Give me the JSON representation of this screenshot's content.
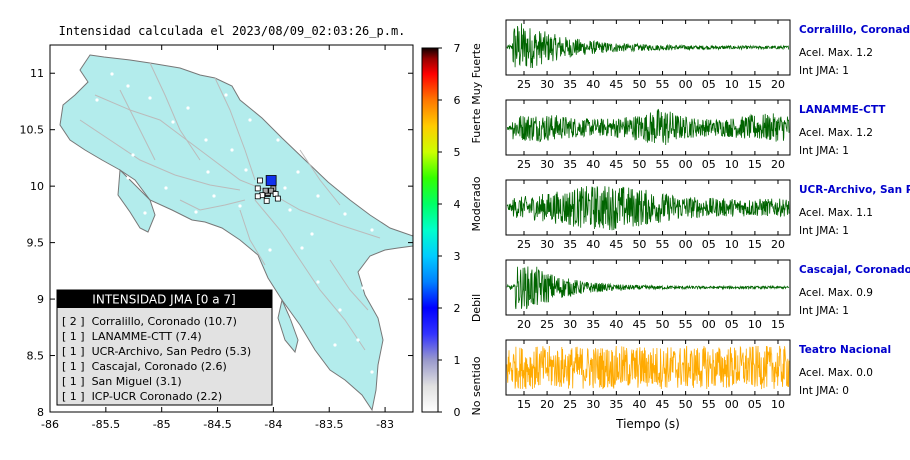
{
  "title": "Intensidad calculada el 2023/08/09_02:03:26_p.m.",
  "map": {
    "x_ticks": [
      "-86",
      "-85.5",
      "-85",
      "-84.5",
      "-84",
      "-83.5",
      "-83"
    ],
    "x_tick_values": [
      -86,
      -85.5,
      -85,
      -84.5,
      -84,
      -83.5,
      -83
    ],
    "y_ticks": [
      "11",
      "10.5",
      "10",
      "9.5",
      "9",
      "8.5",
      "8"
    ],
    "y_tick_values": [
      11,
      10.5,
      10,
      9.5,
      9,
      8.5,
      8
    ],
    "xlim": [
      -86,
      -82.75
    ],
    "ylim": [
      8,
      11.25
    ],
    "colors": {
      "land": "#b3ecec",
      "border": "#777777",
      "road": "#bbbbbb"
    }
  },
  "colorbar": {
    "ticks": [
      "0",
      "1",
      "2",
      "3",
      "4",
      "5",
      "6",
      "7"
    ],
    "tick_values": [
      0,
      1,
      2,
      3,
      4,
      5,
      6,
      7
    ],
    "labels": [
      {
        "text": "No sentido",
        "center": 0.5
      },
      {
        "text": "Debil",
        "center": 2.0
      },
      {
        "text": "Moderado",
        "center": 4.0
      },
      {
        "text": "Fuerte",
        "center": 5.5
      },
      {
        "text": "Muy Fuerte",
        "center": 6.5
      }
    ]
  },
  "legend": {
    "header": "INTENSIDAD JMA [0 a 7]",
    "items": [
      "[ 2 ]  Corralillo, Coronado (10.7)",
      "[ 1 ]  LANAMME-CTT (7.4)",
      "[ 1 ]  UCR-Archivo, San Pedro (5.3)",
      "[ 1 ]  Cascajal, Coronado (2.6)",
      "[ 1 ]  San Miguel (3.1)",
      "[ 1 ]  ICP-UCR Coronado (2.2)"
    ]
  },
  "waveforms": [
    {
      "station": "Corralillo, Coronado",
      "acel": "Acel. Max. 1.2",
      "int": "Int JMA: 1",
      "color": "#006400",
      "ticks": [
        "25",
        "30",
        "35",
        "40",
        "45",
        "50",
        "55",
        "00",
        "05",
        "10",
        "15",
        "20"
      ],
      "first_tick": 25
    },
    {
      "station": "LANAMME-CTT",
      "acel": "Acel. Max. 1.2",
      "int": "Int JMA: 1",
      "color": "#006400",
      "ticks": [
        "25",
        "30",
        "35",
        "40",
        "45",
        "50",
        "55",
        "00",
        "05",
        "10",
        "15",
        "20"
      ],
      "first_tick": 25
    },
    {
      "station": "UCR-Archivo, San Pedro",
      "acel": "Acel. Max. 1.1",
      "int": "Int JMA: 1",
      "color": "#006400",
      "ticks": [
        "25",
        "30",
        "35",
        "40",
        "45",
        "50",
        "55",
        "00",
        "05",
        "10",
        "15",
        "20"
      ],
      "first_tick": 25
    },
    {
      "station": "Cascajal, Coronado",
      "acel": "Acel. Max. 0.9",
      "int": "Int JMA: 1",
      "color": "#006400",
      "ticks": [
        "20",
        "25",
        "30",
        "35",
        "40",
        "45",
        "50",
        "55",
        "00",
        "05",
        "10",
        "15"
      ],
      "first_tick": 20
    },
    {
      "station": "Teatro Nacional",
      "acel": "Acel. Max. 0.0",
      "int": "Int JMA: 0",
      "color": "#ffaa00",
      "ticks": [
        "15",
        "20",
        "25",
        "30",
        "35",
        "40",
        "45",
        "50",
        "55",
        "00",
        "05",
        "10"
      ],
      "first_tick": 15
    }
  ],
  "xlabel": "Tiempo (s)",
  "chart_data": {
    "type": "scatter",
    "title": "Intensidad calculada el 2023/08/09_02:03:26_p.m.",
    "xlim": [
      -86,
      -82.75
    ],
    "ylim": [
      8,
      11.25
    ],
    "stations": [
      {
        "lon": -84.02,
        "lat": 10.05,
        "intensity": 2
      },
      {
        "lon": -84.05,
        "lat": 9.93,
        "intensity": 1
      },
      {
        "lon": -84.05,
        "lat": 9.94,
        "intensity": 1
      },
      {
        "lon": -84.0,
        "lat": 9.98,
        "intensity": 1
      },
      {
        "lon": -84.07,
        "lat": 9.96,
        "intensity": 1
      },
      {
        "lon": -84.02,
        "lat": 9.96,
        "intensity": 1
      },
      {
        "lon": -84.12,
        "lat": 10.05,
        "intensity": 0
      },
      {
        "lon": -84.14,
        "lat": 9.98,
        "intensity": 0
      },
      {
        "lon": -84.1,
        "lat": 9.92,
        "intensity": 0
      },
      {
        "lon": -84.14,
        "lat": 9.91,
        "intensity": 0
      },
      {
        "lon": -84.06,
        "lat": 9.87,
        "intensity": 0
      },
      {
        "lon": -83.98,
        "lat": 9.93,
        "intensity": 0
      },
      {
        "lon": -83.96,
        "lat": 9.89,
        "intensity": 0
      }
    ]
  }
}
